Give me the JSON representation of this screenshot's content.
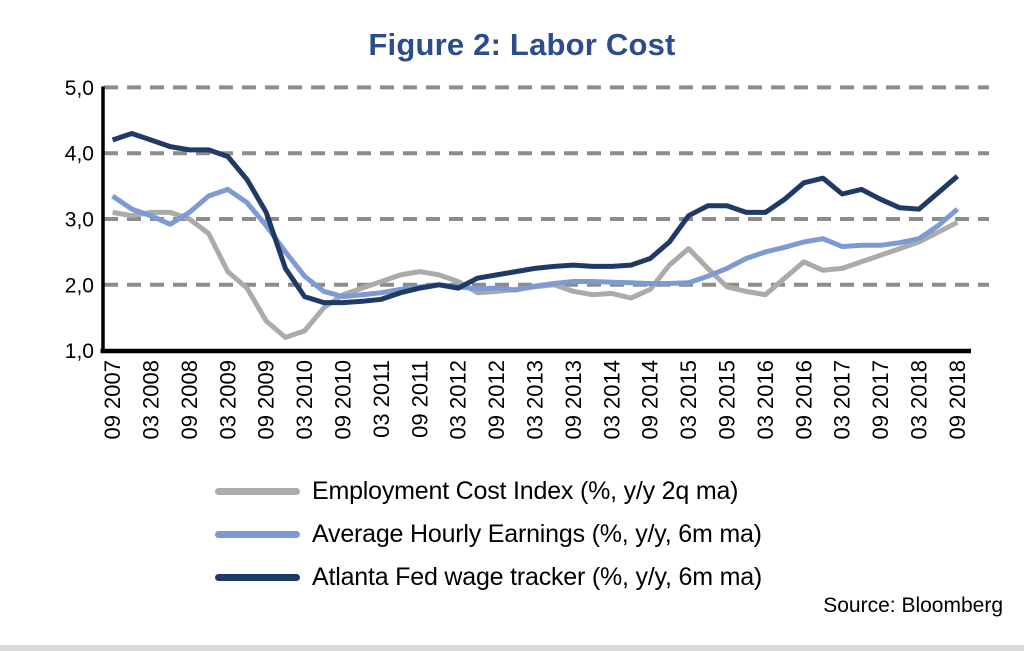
{
  "title": "Figure 2: Labor Cost",
  "source": "Source: Bloomberg",
  "colors": {
    "title": "#2c4d8c",
    "text": "#000000",
    "axis": "#000000",
    "gridline": "#8c8c8c",
    "divider": "#d9d9d9"
  },
  "chart_data": {
    "type": "line",
    "title": "Figure 2: Labor Cost",
    "xlabel": "",
    "ylabel": "",
    "ylim": [
      1.0,
      5.0
    ],
    "y_ticks": [
      1.0,
      2.0,
      3.0,
      4.0,
      5.0
    ],
    "y_tick_labels": [
      "1,0",
      "2,0",
      "3,0",
      "4,0",
      "5,0"
    ],
    "grid_values": [
      2.0,
      3.0,
      4.0,
      5.0
    ],
    "grid_style": "horizontal dashed gray",
    "legend_position": "bottom",
    "tick_every": 2,
    "x": [
      "09 2007",
      "12 2007",
      "03 2008",
      "06 2008",
      "09 2008",
      "12 2008",
      "03 2009",
      "06 2009",
      "09 2009",
      "12 2009",
      "03 2010",
      "06 2010",
      "09 2010",
      "12 2010",
      "03 2011",
      "06 2011",
      "09 2011",
      "12 2011",
      "03 2012",
      "06 2012",
      "09 2012",
      "12 2012",
      "03 2013",
      "06 2013",
      "09 2013",
      "12 2013",
      "03 2014",
      "06 2014",
      "09 2014",
      "12 2014",
      "03 2015",
      "06 2015",
      "09 2015",
      "12 2015",
      "03 2016",
      "06 2016",
      "09 2016",
      "12 2016",
      "03 2017",
      "06 2017",
      "09 2017",
      "12 2017",
      "03 2018",
      "06 2018",
      "09 2018"
    ],
    "series": [
      {
        "name": "Employment Cost Index (%, y/y 2q ma)",
        "color": "#ababab",
        "values": [
          3.1,
          3.05,
          3.1,
          3.1,
          3.0,
          2.78,
          2.2,
          1.95,
          1.45,
          1.2,
          1.3,
          1.65,
          1.85,
          1.95,
          2.05,
          2.15,
          2.2,
          2.15,
          2.05,
          1.88,
          1.9,
          1.93,
          1.97,
          2.0,
          1.9,
          1.85,
          1.87,
          1.8,
          1.93,
          2.3,
          2.55,
          2.25,
          1.97,
          1.9,
          1.85,
          2.1,
          2.35,
          2.22,
          2.25,
          2.35,
          2.45,
          2.55,
          2.65,
          2.8,
          2.95
        ]
      },
      {
        "name": "Average Hourly Earnings (%, y/y, 6m ma)",
        "color": "#7d9bd2",
        "values": [
          3.35,
          3.15,
          3.05,
          2.92,
          3.1,
          3.35,
          3.45,
          3.25,
          2.9,
          2.5,
          2.13,
          1.9,
          1.82,
          1.85,
          1.88,
          1.93,
          1.97,
          2.0,
          1.97,
          1.94,
          1.95,
          1.92,
          1.98,
          2.02,
          2.05,
          2.05,
          2.04,
          2.03,
          2.02,
          2.02,
          2.03,
          2.13,
          2.25,
          2.4,
          2.5,
          2.57,
          2.65,
          2.7,
          2.58,
          2.6,
          2.6,
          2.64,
          2.7,
          2.9,
          3.15
        ]
      },
      {
        "name": "Atlanta Fed wage tracker (%, y/y, 6m ma)",
        "color": "#1f3a66",
        "values": [
          4.2,
          4.3,
          4.2,
          4.1,
          4.05,
          4.05,
          3.95,
          3.6,
          3.1,
          2.25,
          1.82,
          1.73,
          1.73,
          1.75,
          1.78,
          1.88,
          1.95,
          2.0,
          1.95,
          2.1,
          2.15,
          2.2,
          2.25,
          2.28,
          2.3,
          2.28,
          2.28,
          2.3,
          2.4,
          2.65,
          3.05,
          3.2,
          3.2,
          3.1,
          3.1,
          3.3,
          3.55,
          3.62,
          3.38,
          3.45,
          3.3,
          3.17,
          3.15,
          3.4,
          3.65
        ]
      }
    ]
  }
}
